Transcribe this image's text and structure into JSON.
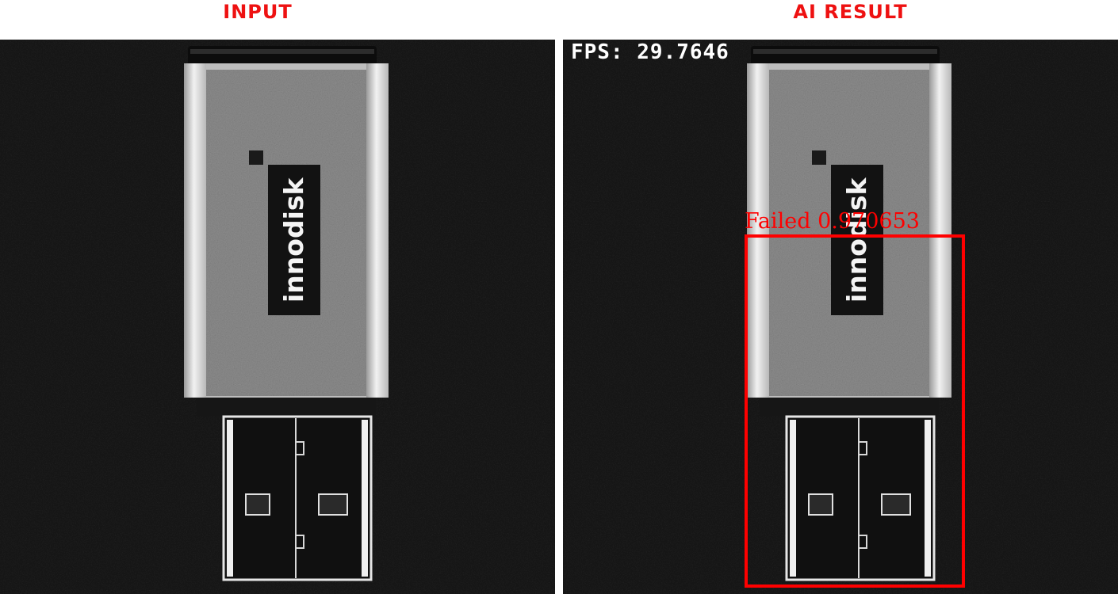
{
  "panels": {
    "input": {
      "title": "INPUT"
    },
    "result": {
      "title": "AI RESULT"
    }
  },
  "overlay": {
    "fps_text": "FPS: 29.7646",
    "detection": {
      "label": "Failed 0.970653",
      "class_name": "Failed",
      "confidence": 0.970653
    }
  },
  "device": {
    "brand_text": "innodisk",
    "product": "usb-flash-drive"
  },
  "colors": {
    "accent_red": "#ff0000",
    "title_red": "#ee1111",
    "fps_text": "#ffffff",
    "background_dark": "#141414"
  }
}
